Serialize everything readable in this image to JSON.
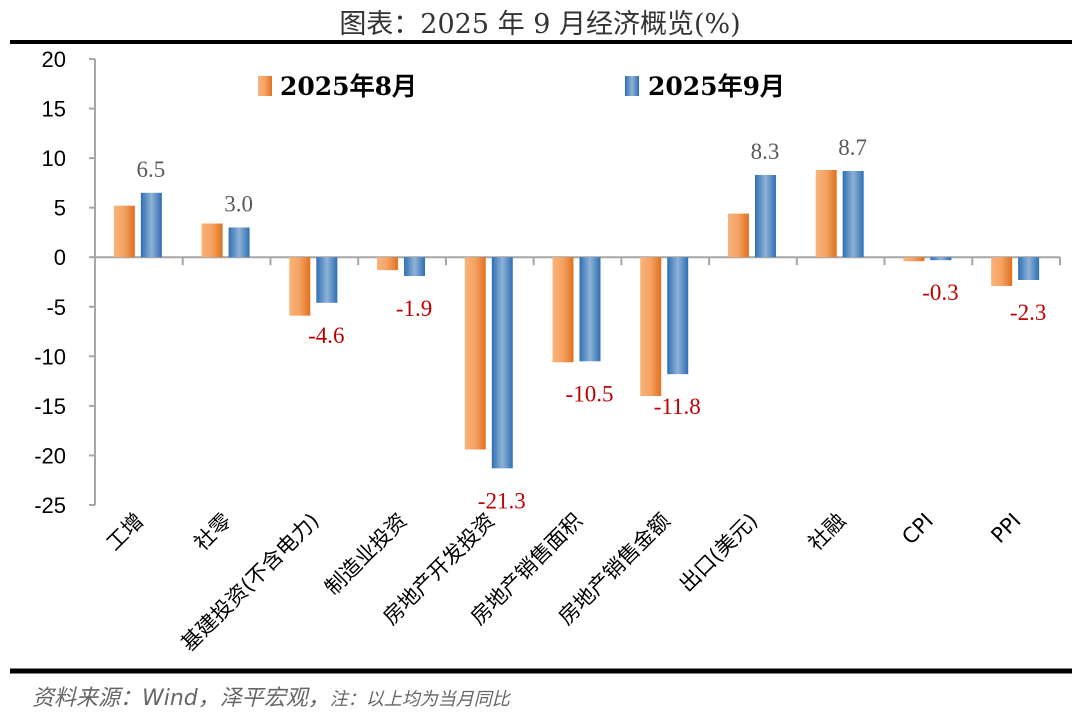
{
  "title": "图表：2025 年 9 月经济概览(%)",
  "footer": {
    "source": "资料来源：Wind，泽平宏观，",
    "note": "注：以上均为当月同比"
  },
  "chart_data": {
    "type": "bar",
    "title": "图表：2025 年 9 月经济概览(%)",
    "categories": [
      "工增",
      "社零",
      "基建投资(不含电力)",
      "制造业投资",
      "房地产开发投资",
      "房地产销售面积",
      "房地产销售金额",
      "出口(美元)",
      "社融",
      "CPI",
      "PPI"
    ],
    "series": [
      {
        "name": "2025年8月",
        "color": "#ed7d31",
        "values": [
          5.2,
          3.4,
          -5.9,
          -1.3,
          -19.4,
          -10.6,
          -14.0,
          4.4,
          8.8,
          -0.4,
          -2.9
        ]
      },
      {
        "name": "2025年9月",
        "color": "#2e75b6",
        "values": [
          6.5,
          3.0,
          -4.6,
          -1.9,
          -21.3,
          -10.5,
          -11.8,
          8.3,
          8.7,
          -0.3,
          -2.3
        ]
      }
    ],
    "data_labels": [
      "6.5",
      "3.0",
      "-4.6",
      "-1.9",
      "-21.3",
      "-10.5",
      "-11.8",
      "8.3",
      "8.7",
      "-0.3",
      "-2.3"
    ],
    "data_label_colors": {
      "positive": "#595959",
      "negative": "#c00000"
    },
    "ylim": [
      -25,
      20
    ],
    "yticks": [
      20,
      15,
      10,
      5,
      0,
      -5,
      -10,
      -15,
      -20,
      -25
    ],
    "grid": false,
    "legend": "top"
  }
}
